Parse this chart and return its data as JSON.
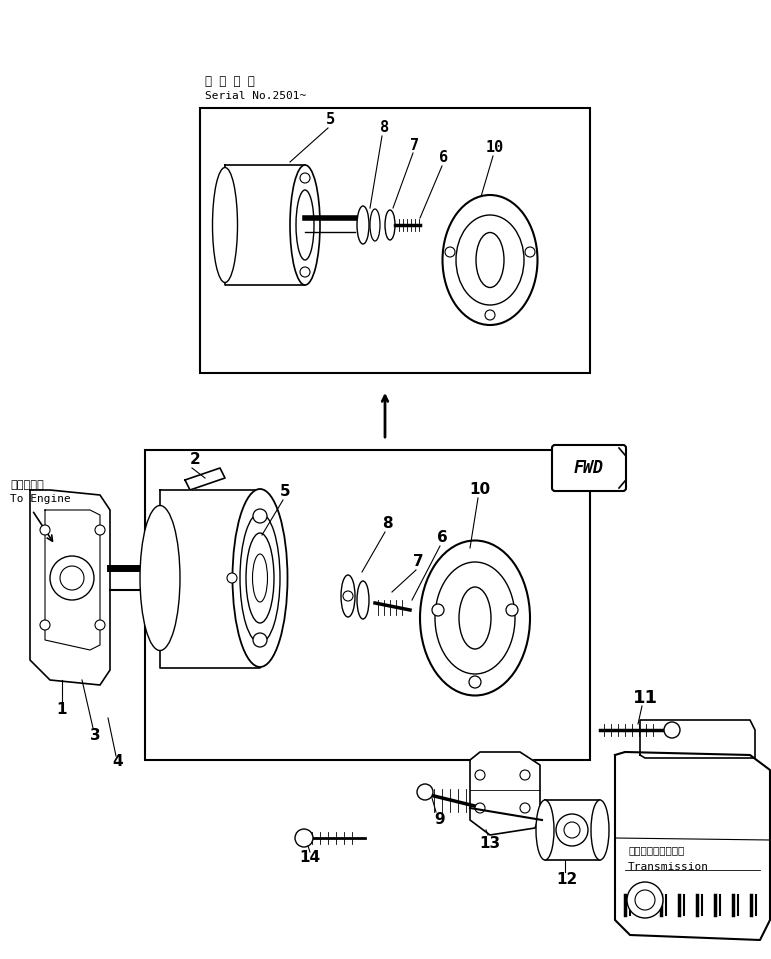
{
  "bg_color": "#ffffff",
  "line_color": "#000000",
  "serial_label_jp": "適 用 号 標",
  "serial_label_en": "Serial No.2501~",
  "engine_label_jp": "エンジンへ",
  "engine_label_en": "To Engine",
  "transmission_label_jp": "トランスミッション",
  "transmission_label_en": "Transmission",
  "fwd_label": "FWD"
}
